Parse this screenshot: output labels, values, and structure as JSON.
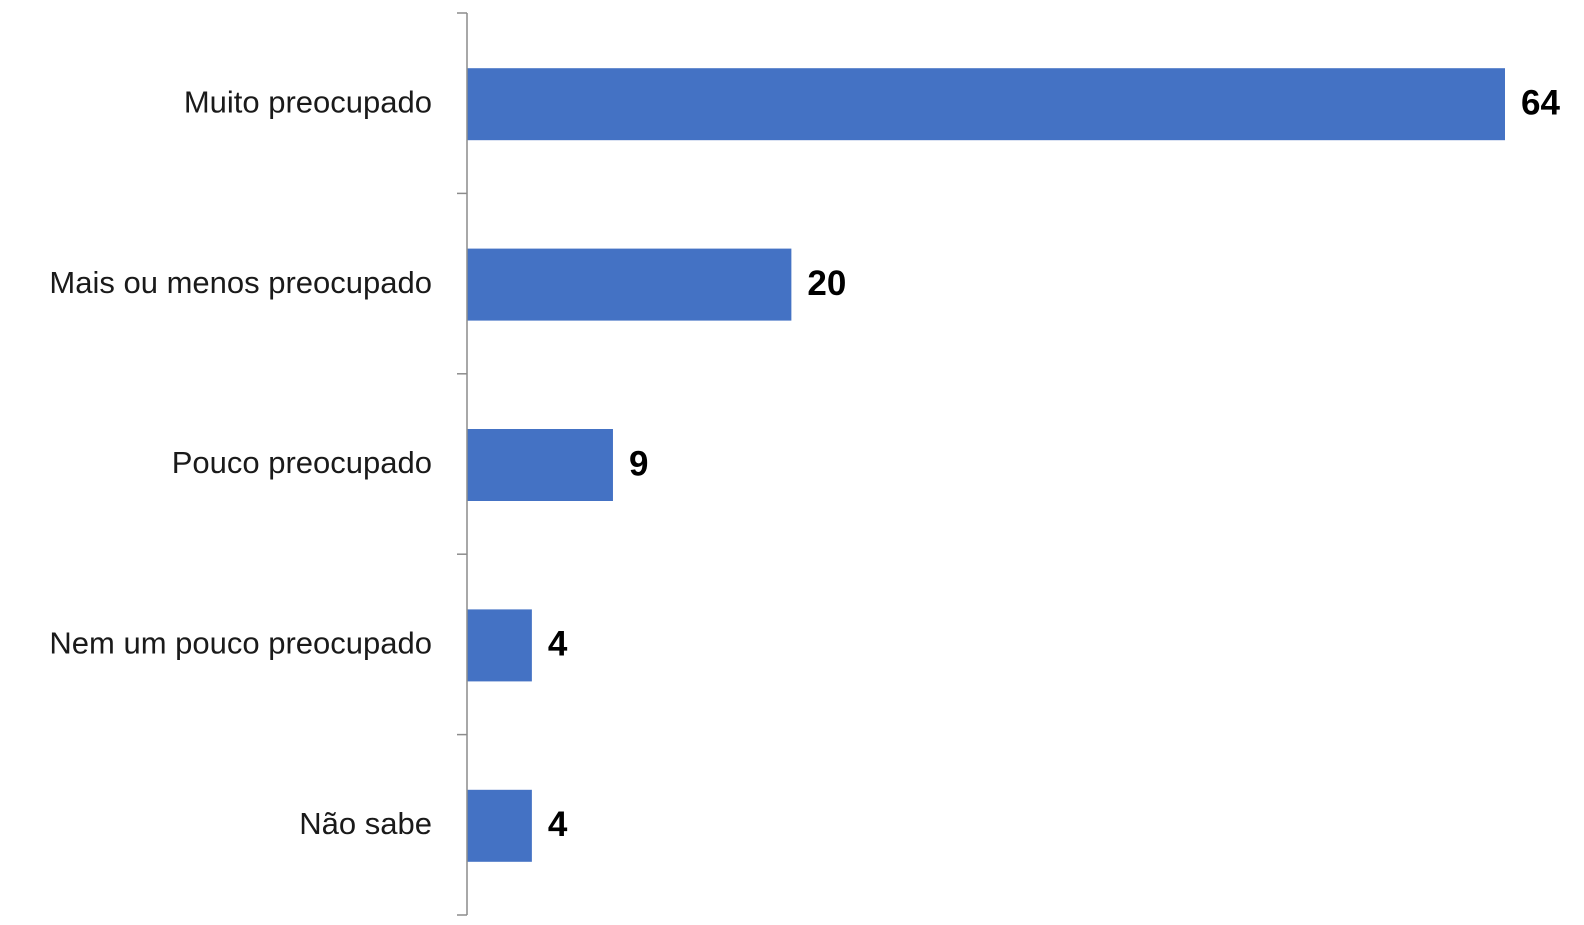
{
  "chart_data": {
    "type": "bar",
    "orientation": "horizontal",
    "categories": [
      "Muito preocupado",
      "Mais ou menos preocupado",
      "Pouco preocupado",
      "Nem um pouco preocupado",
      "Não sabe"
    ],
    "values": [
      64,
      20,
      9,
      4,
      4
    ],
    "value_labels": [
      "64",
      "20",
      "9",
      "4",
      "4"
    ],
    "bar_color": "#4472C4",
    "axis_color": "#8c8c8c",
    "xlim": [
      0,
      64
    ],
    "grid": false,
    "legend": "none",
    "title": "",
    "xlabel": "",
    "ylabel": ""
  }
}
